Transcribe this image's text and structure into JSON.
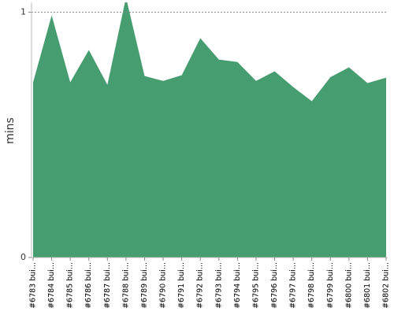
{
  "chart_data": {
    "type": "area",
    "y_label": "mins",
    "categories": [
      "#6783 bui...",
      "#6784 bui...",
      "#6785 bui...",
      "#6786 bui...",
      "#6787 bui...",
      "#6788 bui...",
      "#6789 bui...",
      "#6790 bui...",
      "#6791 bui...",
      "#6792 bui...",
      "#6793 bui...",
      "#6794 bui...",
      "#6795 bui...",
      "#6796 bui...",
      "#6797 bui...",
      "#6798 bui...",
      "#6799 bui...",
      "#6800 bui...",
      "#6801 bui...",
      "#6802 bui..."
    ],
    "values": [
      0.714,
      0.987,
      0.714,
      0.846,
      0.704,
      1.06,
      0.74,
      0.72,
      0.743,
      0.894,
      0.807,
      0.797,
      0.72,
      0.759,
      0.695,
      0.637,
      0.735,
      0.775,
      0.711,
      0.733
    ],
    "color": "#469d6f",
    "ylim": [
      0,
      1.04
    ],
    "yticks": [
      0,
      1
    ],
    "grid": true
  }
}
